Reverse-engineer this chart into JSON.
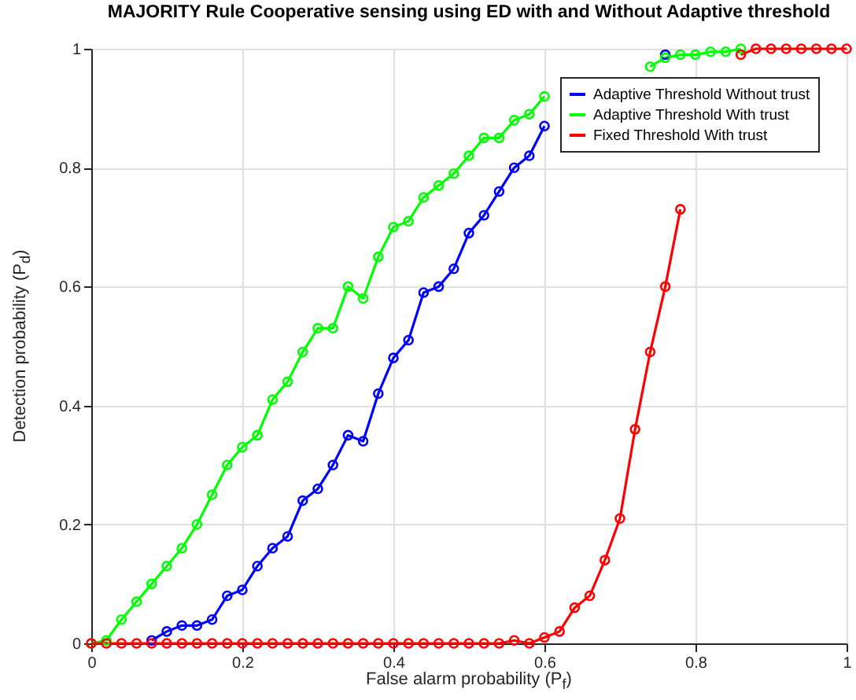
{
  "chart_data": {
    "type": "line",
    "title": "MAJORITY Rule Cooperative sensing using ED with and Without Adaptive threshold",
    "xlabel": "False alarm probability (P$_{f}$)",
    "ylabel": "Detection probability (P$_{d}$)",
    "x": [
      0,
      0.02,
      0.04,
      0.06,
      0.08,
      0.1,
      0.12,
      0.14,
      0.16,
      0.18,
      0.2,
      0.22,
      0.24,
      0.26,
      0.28,
      0.3,
      0.32,
      0.34,
      0.36,
      0.38,
      0.4,
      0.42,
      0.44,
      0.46,
      0.48,
      0.5,
      0.52,
      0.54,
      0.56,
      0.58,
      0.6,
      0.62,
      0.64,
      0.66,
      0.68,
      0.7,
      0.72,
      0.74,
      0.76,
      0.78,
      0.8,
      0.82,
      0.84,
      0.86,
      0.88,
      0.9,
      0.92,
      0.94,
      0.96,
      0.98,
      1
    ],
    "series": [
      {
        "name": "Adaptive Threshold Without trust",
        "color": "#0000ff",
        "values": [
          null,
          null,
          null,
          null,
          0.005,
          0.02,
          0.03,
          0.03,
          0.04,
          0.08,
          0.09,
          0.13,
          0.16,
          0.18,
          0.24,
          0.26,
          0.3,
          0.35,
          0.34,
          0.42,
          0.48,
          0.51,
          0.59,
          0.6,
          0.63,
          0.69,
          0.72,
          0.76,
          0.8,
          0.82,
          0.87,
          null,
          null,
          null,
          null,
          null,
          null,
          null,
          0.99,
          null,
          null,
          null,
          null,
          null,
          null,
          null,
          null,
          null,
          null,
          null,
          null
        ]
      },
      {
        "name": "Adaptive Threshold With trust",
        "color": "#00ff00",
        "values": [
          0,
          0.005,
          0.04,
          0.07,
          0.1,
          0.13,
          0.16,
          0.2,
          0.25,
          0.3,
          0.33,
          0.35,
          0.41,
          0.44,
          0.49,
          0.53,
          0.53,
          0.6,
          0.58,
          0.65,
          0.7,
          0.71,
          0.75,
          0.77,
          0.79,
          0.82,
          0.85,
          0.85,
          0.88,
          0.89,
          0.92,
          null,
          null,
          null,
          null,
          null,
          null,
          0.97,
          0.985,
          0.99,
          0.99,
          0.995,
          0.995,
          1,
          null,
          null,
          null,
          null,
          null,
          null,
          null
        ]
      },
      {
        "name": "Fixed Threshold With trust",
        "color": "#ff0000",
        "values": [
          0,
          0,
          0,
          0,
          0,
          0,
          0,
          0,
          0,
          0,
          0,
          0,
          0,
          0,
          0,
          0,
          0,
          0,
          0,
          0,
          0,
          0,
          0,
          0,
          0,
          0,
          0,
          0,
          0.005,
          0,
          0.01,
          0.02,
          0.06,
          0.08,
          0.14,
          0.21,
          0.36,
          0.49,
          0.6,
          0.73,
          null,
          null,
          null,
          0.99,
          1,
          1,
          1,
          1,
          1,
          1,
          1
        ]
      }
    ],
    "xlim": [
      0,
      1
    ],
    "ylim": [
      0,
      1
    ],
    "xticks": [
      0,
      0.2,
      0.4,
      0.6,
      0.8,
      1
    ],
    "yticks": [
      0,
      0.2,
      0.4,
      0.6,
      0.8,
      1
    ],
    "grid": true,
    "legend": "top right",
    "marker": "circle",
    "line_style": "solid"
  }
}
